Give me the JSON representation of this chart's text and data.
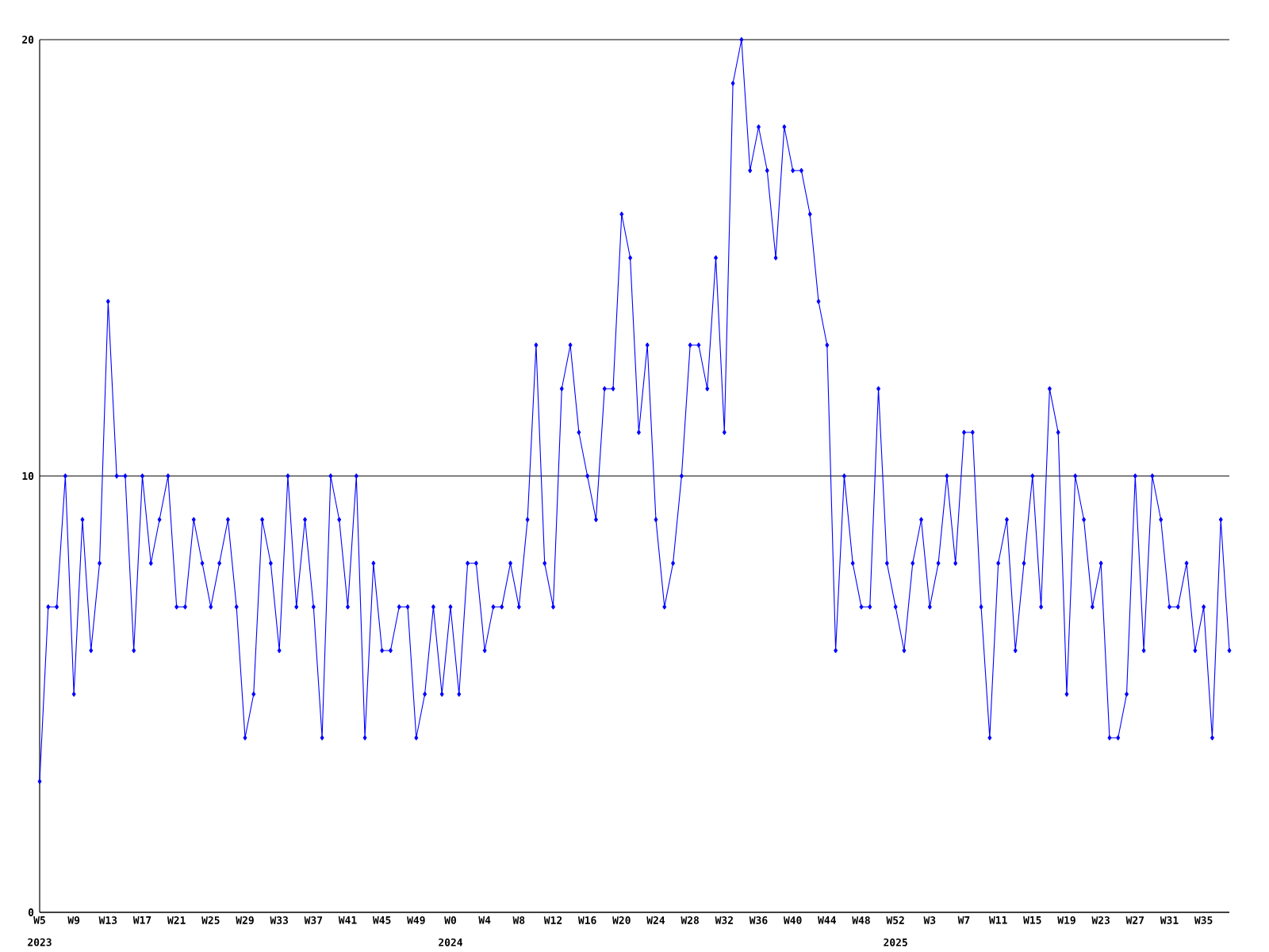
{
  "chart_data": {
    "type": "line",
    "categories": [
      "W5 2023",
      null,
      null,
      null,
      "W9",
      null,
      null,
      null,
      "W13",
      null,
      null,
      null,
      "W17",
      null,
      null,
      null,
      "W21",
      null,
      null,
      null,
      "W25",
      null,
      null,
      null,
      "W29",
      null,
      null,
      null,
      "W33",
      null,
      null,
      null,
      "W37",
      null,
      null,
      null,
      "W41",
      null,
      null,
      null,
      "W45",
      null,
      null,
      null,
      "W49",
      null,
      null,
      null,
      "W0 2024",
      null,
      null,
      null,
      "W4",
      null,
      null,
      null,
      "W8",
      null,
      null,
      null,
      "W12",
      null,
      null,
      null,
      "W16",
      null,
      null,
      null,
      "W20",
      null,
      null,
      null,
      "W24",
      null,
      null,
      null,
      "W28",
      null,
      null,
      null,
      "W32",
      null,
      null,
      null,
      "W36",
      null,
      null,
      null,
      "W40",
      null,
      null,
      null,
      "W44",
      null,
      null,
      null,
      "W48",
      null,
      null,
      null,
      "W52 2025",
      null,
      null,
      null,
      "W3",
      null,
      null,
      null,
      "W7",
      null,
      null,
      null,
      "W11",
      null,
      null,
      null,
      "W15",
      null,
      null,
      null,
      "W19",
      null,
      null,
      null,
      "W23",
      null,
      null,
      null,
      "W27",
      null,
      null,
      null,
      "W31",
      null,
      null,
      null,
      "W35",
      null,
      null,
      null
    ],
    "values": [
      3,
      7,
      7,
      10,
      5,
      9,
      6,
      8,
      14,
      10,
      10,
      6,
      10,
      8,
      9,
      10,
      7,
      7,
      9,
      8,
      7,
      8,
      9,
      7,
      4,
      5,
      9,
      8,
      6,
      10,
      7,
      9,
      7,
      4,
      10,
      9,
      7,
      10,
      4,
      8,
      6,
      6,
      7,
      7,
      4,
      5,
      7,
      5,
      7,
      5,
      8,
      8,
      6,
      7,
      7,
      8,
      7,
      9,
      13,
      8,
      7,
      12,
      13,
      11,
      10,
      9,
      12,
      12,
      16,
      15,
      11,
      13,
      9,
      7,
      8,
      10,
      13,
      13,
      12,
      15,
      11,
      19,
      20,
      17,
      18,
      17,
      15,
      18,
      17,
      17,
      16,
      14,
      13,
      6,
      10,
      8,
      7,
      7,
      12,
      8,
      7,
      6,
      8,
      9,
      7,
      8,
      10,
      8,
      11,
      11,
      7,
      4,
      8,
      9,
      6,
      8,
      10,
      7,
      12,
      11,
      5,
      10,
      9,
      7,
      8,
      4,
      4,
      5,
      10,
      6,
      10,
      9,
      7,
      7,
      8,
      6,
      7,
      4,
      9,
      6
    ],
    "color": "#0000ff",
    "marker": "diamond",
    "line_style": "solid",
    "grid": "y",
    "ylim": [
      0,
      20
    ],
    "yticks": [
      0,
      10,
      20
    ]
  }
}
